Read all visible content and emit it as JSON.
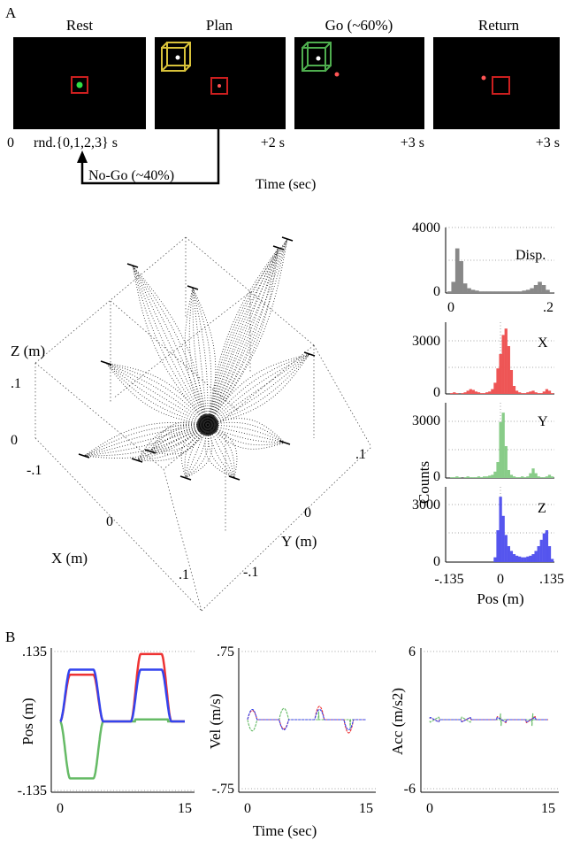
{
  "panel_a": {
    "label": "A",
    "stages": [
      {
        "title": "Rest"
      },
      {
        "title": "Plan"
      },
      {
        "title": "Go (~60%)"
      },
      {
        "title": "Return"
      }
    ],
    "timeline": {
      "start": "0",
      "random": "rnd.{0,1,2,3}  s",
      "plan_time": "+2 s",
      "go_time": "+3 s",
      "return_time": "+3 s",
      "nogo": "No-Go (~40%)",
      "axis_label": "Time (sec)"
    },
    "colors": {
      "target_red": "#cc1f1f",
      "cube_yellow": "#d8c23a",
      "cube_green": "#4fae4f",
      "cursor_green": "#33dd44"
    }
  },
  "trajectory_3d": {
    "z_label": "Z (m)",
    "x_label": "X (m)",
    "y_label": "Y (m)",
    "z_ticks": [
      ".1",
      "0",
      "-.1"
    ],
    "x_ticks": [
      "0",
      ".1"
    ],
    "y_ticks": [
      ".1",
      "0",
      "-.1"
    ]
  },
  "histograms": {
    "ylabel": "Counts",
    "xlabel": "Pos (m)",
    "panels": [
      {
        "name": "Disp.",
        "ytick": "4000",
        "ymin": "0",
        "color": "#888888"
      },
      {
        "name": "X",
        "ytick": "3000",
        "ymin": "0",
        "color": "#ee5555"
      },
      {
        "name": "Y",
        "ytick": "3000",
        "ymin": "0",
        "color": "#88cc88"
      },
      {
        "name": "Z",
        "ytick": "3000",
        "ymin": "0",
        "color": "#5555ee"
      }
    ],
    "disp_xticks": [
      "0",
      ".2"
    ],
    "pos_xticks": [
      "-.135",
      "0",
      ".135"
    ]
  },
  "panel_b": {
    "label": "B",
    "xlabel": "Time (sec)",
    "plots": [
      {
        "ylabel": "Pos (m)",
        "ytop": ".135",
        "ybottom": "-.135",
        "x0": "0",
        "x1": "15"
      },
      {
        "ylabel": "Vel (m/s)",
        "ytop": ".75",
        "ybottom": "-.75",
        "x0": "0",
        "x1": "15"
      },
      {
        "ylabel": "Acc (m/s2)",
        "ytop": "6",
        "ybottom": "-6",
        "x0": "0",
        "x1": "15"
      }
    ],
    "series_colors": {
      "x": "#ee3333",
      "y": "#66bb66",
      "z": "#3344ee"
    }
  }
}
